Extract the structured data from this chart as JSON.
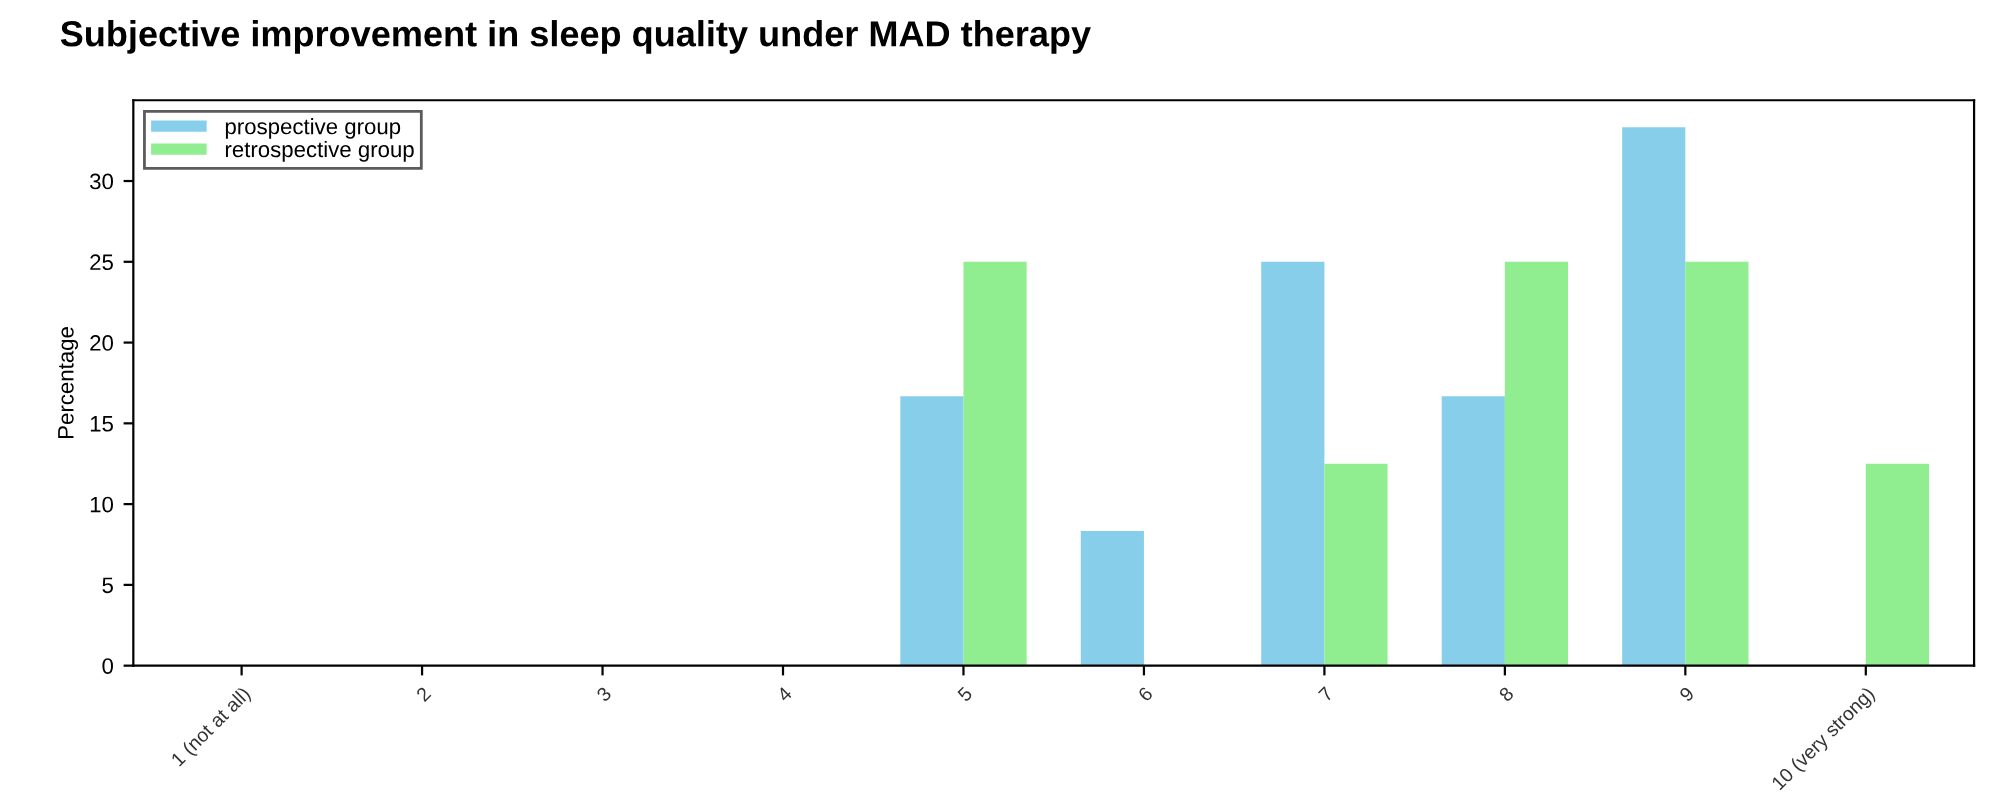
{
  "chart_data": {
    "type": "bar",
    "title": "Subjective improvement in sleep quality under MAD therapy",
    "ylabel": "Percentage",
    "categories": [
      "1 (not at all)",
      "2",
      "3",
      "4",
      "5",
      "6",
      "7",
      "8",
      "9",
      "10 (very strong)"
    ],
    "series": [
      {
        "name": "prospective group",
        "color": "#87ceeb",
        "values": [
          0,
          0,
          0,
          0,
          16.67,
          8.33,
          25,
          16.67,
          33.33,
          0
        ]
      },
      {
        "name": "retrospective group",
        "color": "#90ee90",
        "values": [
          0,
          0,
          0,
          0,
          25,
          0,
          12.5,
          25,
          25,
          12.5
        ]
      }
    ],
    "ylim": [
      0,
      35
    ],
    "yticks": [
      0,
      5,
      10,
      15,
      20,
      25,
      30
    ],
    "grid": false,
    "legend": "top left"
  }
}
